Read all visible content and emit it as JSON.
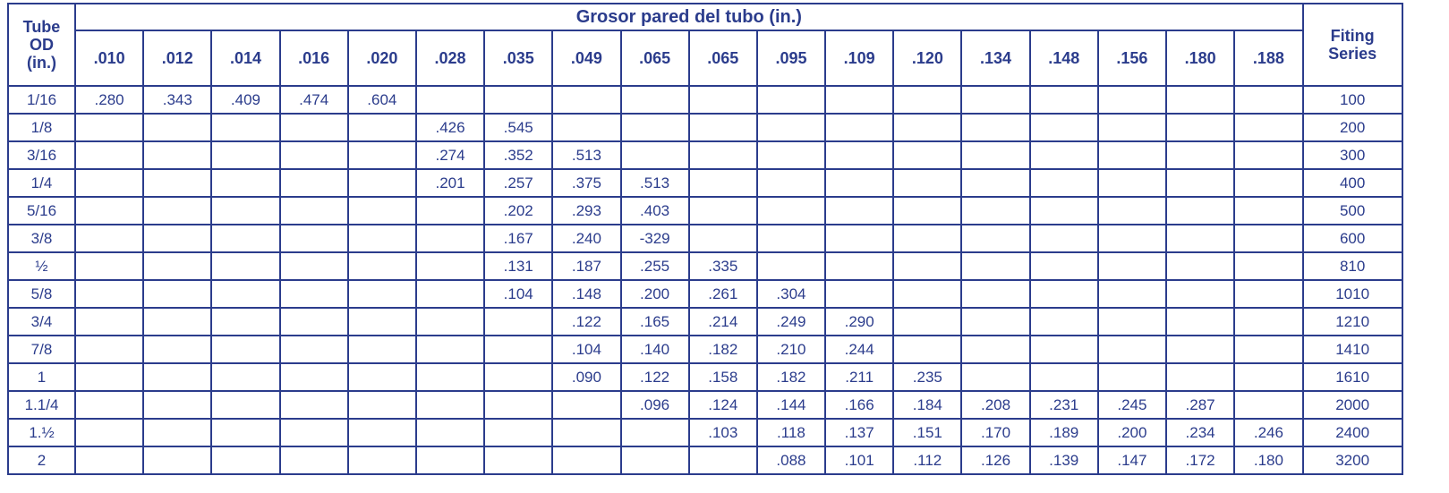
{
  "table": {
    "od_header": [
      "Tube",
      "OD",
      "(in.)"
    ],
    "group_header": "Grosor pared del tubo (in.)",
    "series_header": [
      "Fiting",
      "Series"
    ],
    "walls": [
      ".010",
      ".012",
      ".014",
      ".016",
      ".020",
      ".028",
      ".035",
      ".049",
      ".065",
      ".065",
      ".095",
      ".109",
      ".120",
      ".134",
      ".148",
      ".156",
      ".180",
      ".188"
    ],
    "rows": [
      {
        "od": "1/16",
        "cells": [
          ".280",
          ".343",
          ".409",
          ".474",
          ".604",
          null,
          null,
          null,
          null,
          null,
          null,
          null,
          null,
          null,
          null,
          null,
          null,
          null
        ],
        "series": "100"
      },
      {
        "od": "1/8",
        "cells": [
          null,
          null,
          null,
          null,
          null,
          ".426",
          ".545",
          null,
          null,
          null,
          null,
          null,
          null,
          null,
          null,
          null,
          null,
          null
        ],
        "series": "200"
      },
      {
        "od": "3/16",
        "cells": [
          null,
          null,
          null,
          null,
          null,
          ".274",
          ".352",
          ".513",
          null,
          null,
          null,
          null,
          null,
          null,
          null,
          null,
          null,
          null
        ],
        "series": "300"
      },
      {
        "od": "1/4",
        "cells": [
          null,
          null,
          null,
          null,
          null,
          ".201",
          ".257",
          ".375",
          ".513",
          null,
          null,
          null,
          null,
          null,
          null,
          null,
          null,
          null
        ],
        "series": "400"
      },
      {
        "od": "5/16",
        "cells": [
          null,
          null,
          null,
          null,
          null,
          null,
          ".202",
          ".293",
          ".403",
          null,
          null,
          null,
          null,
          null,
          null,
          null,
          null,
          null
        ],
        "series": "500"
      },
      {
        "od": "3/8",
        "cells": [
          null,
          null,
          null,
          null,
          null,
          null,
          ".167",
          ".240",
          "-329",
          null,
          null,
          null,
          null,
          null,
          null,
          null,
          null,
          null
        ],
        "series": "600"
      },
      {
        "od": "½",
        "cells": [
          null,
          null,
          null,
          null,
          null,
          null,
          ".131",
          ".187",
          ".255",
          ".335",
          null,
          null,
          null,
          null,
          null,
          null,
          null,
          null
        ],
        "series": "810"
      },
      {
        "od": "5/8",
        "cells": [
          null,
          null,
          null,
          null,
          null,
          null,
          ".104",
          ".148",
          ".200",
          ".261",
          ".304",
          null,
          null,
          null,
          null,
          null,
          null,
          null
        ],
        "series": "1010"
      },
      {
        "od": "3/4",
        "cells": [
          null,
          null,
          null,
          null,
          null,
          null,
          null,
          ".122",
          ".165",
          ".214",
          ".249",
          ".290",
          null,
          null,
          null,
          null,
          null,
          null
        ],
        "series": "1210"
      },
      {
        "od": "7/8",
        "cells": [
          null,
          null,
          null,
          null,
          null,
          null,
          null,
          ".104",
          ".140",
          ".182",
          ".210",
          ".244",
          null,
          null,
          null,
          null,
          null,
          null
        ],
        "series": "1410"
      },
      {
        "od": "1",
        "cells": [
          null,
          null,
          null,
          null,
          null,
          null,
          null,
          ".090",
          ".122",
          ".158",
          ".182",
          ".211",
          ".235",
          null,
          null,
          null,
          null,
          null
        ],
        "series": "1610"
      },
      {
        "od": "1.1/4",
        "cells": [
          null,
          null,
          null,
          null,
          null,
          null,
          null,
          null,
          ".096",
          ".124",
          ".144",
          ".166",
          ".184",
          ".208",
          ".231",
          ".245",
          ".287",
          null
        ],
        "series": "2000"
      },
      {
        "od": "1.½",
        "cells": [
          null,
          null,
          null,
          null,
          null,
          null,
          null,
          null,
          null,
          ".103",
          ".118",
          ".137",
          ".151",
          ".170",
          ".189",
          ".200",
          ".234",
          ".246"
        ],
        "series": "2400"
      },
      {
        "od": "2",
        "cells": [
          null,
          null,
          null,
          null,
          null,
          null,
          null,
          null,
          null,
          null,
          ".088",
          ".101",
          ".112",
          ".126",
          ".139",
          ".147",
          ".172",
          ".180"
        ],
        "series": "3200"
      }
    ]
  }
}
